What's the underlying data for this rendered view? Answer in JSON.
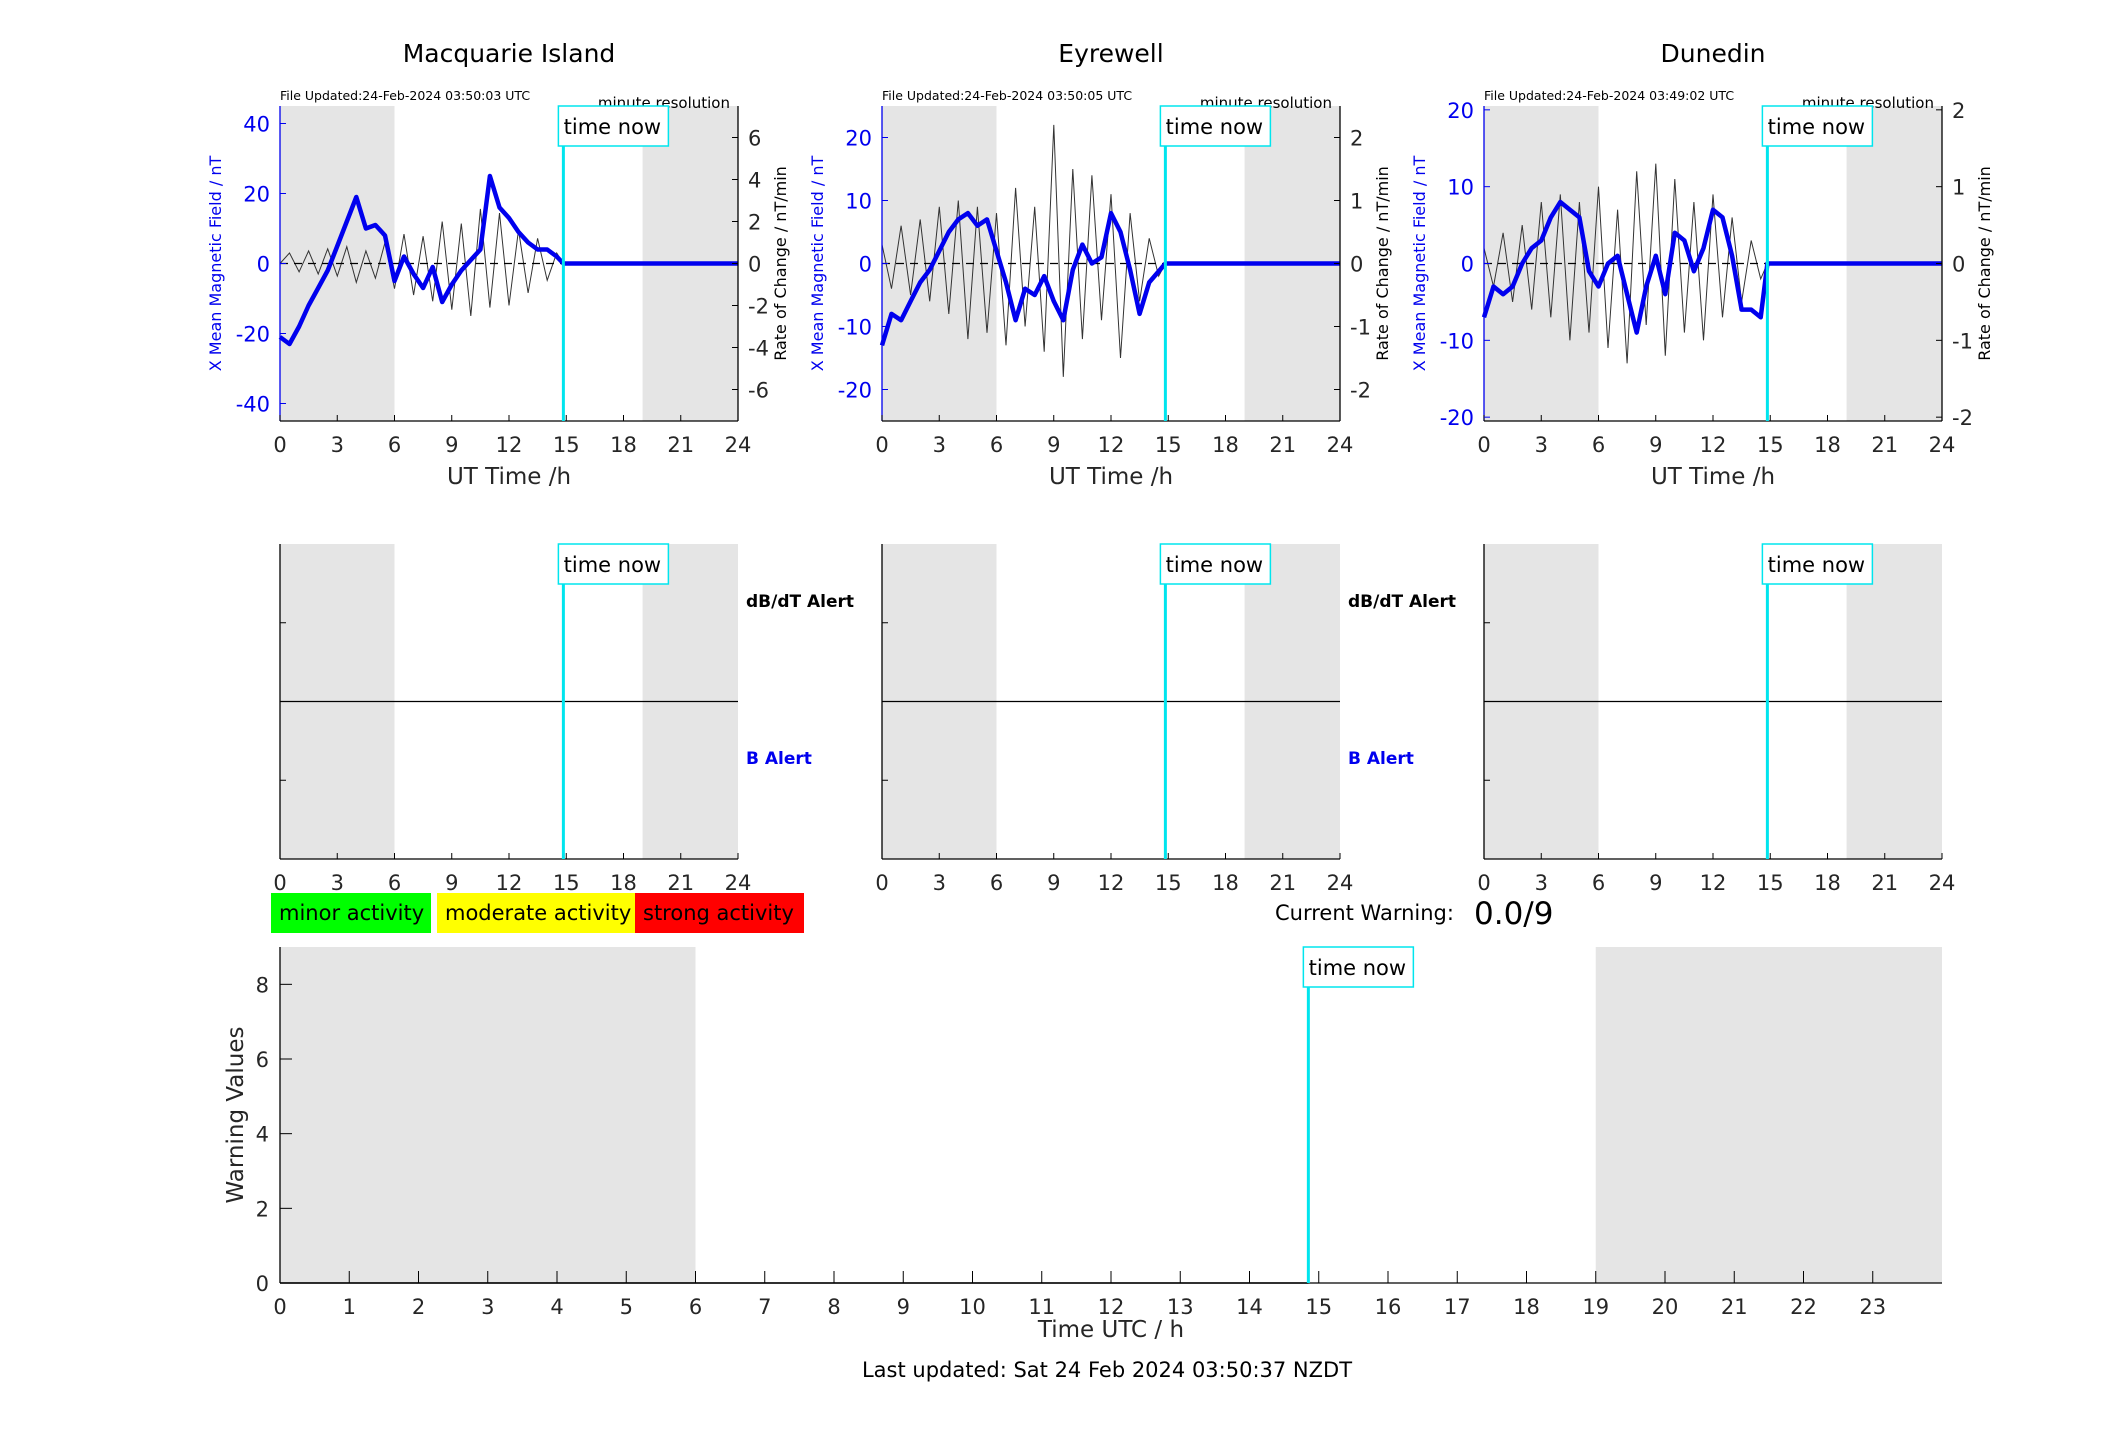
{
  "figure": {
    "last_updated": "Last updated: Sat 24 Feb 2024 03:50:37 NZDT",
    "time_now_label": "time now",
    "legend": {
      "minor": {
        "label": "minor activity",
        "color": "#00ff00"
      },
      "moderate": {
        "label": "moderate activity",
        "color": "#ffff00"
      },
      "strong": {
        "label": "strong activity",
        "color": "#ff0000"
      }
    },
    "current_warning": {
      "label": "Current Warning:",
      "value": "0.0/9"
    }
  },
  "colors": {
    "field_line": "#0000ee",
    "rate_line": "#333333",
    "time_now": "#00e5ee",
    "night_shade": "#e5e5e5"
  },
  "chart_data": [
    {
      "type": "line",
      "panel": "field",
      "title": "Macquarie Island",
      "file_updated": "File Updated:24-Feb-2024 03:50:03 UTC",
      "resolution": "minute resolution",
      "xlabel": "UT Time /h",
      "ylabel": "X Mean Magnetic Field / nT",
      "y2label": "Rate of Change / nT/min",
      "xlim": [
        0,
        24
      ],
      "ylim": [
        -45,
        45
      ],
      "y2lim": [
        -7.5,
        7.5
      ],
      "xticks": [
        0,
        3,
        6,
        9,
        12,
        15,
        18,
        21,
        24
      ],
      "yticks": [
        -40,
        -20,
        0,
        20,
        40
      ],
      "y2ticks": [
        -6,
        -4,
        -2,
        0,
        2,
        4,
        6
      ],
      "shaded": [
        [
          0,
          6
        ],
        [
          19,
          24
        ]
      ],
      "time_now": 14.85,
      "field_series": {
        "x": [
          0,
          0.5,
          1,
          1.5,
          2,
          2.5,
          3,
          3.5,
          4,
          4.5,
          5,
          5.5,
          6,
          6.5,
          7,
          7.5,
          8,
          8.5,
          9,
          9.5,
          10,
          10.5,
          11,
          11.5,
          12,
          12.5,
          13,
          13.5,
          14,
          14.5,
          14.85,
          24
        ],
        "y": [
          -21,
          -23,
          -18,
          -12,
          -7,
          -2,
          5,
          12,
          19,
          10,
          11,
          8,
          -5,
          2,
          -3,
          -7,
          -1,
          -11,
          -6,
          -2,
          1,
          4,
          25,
          16,
          13,
          9,
          6,
          4,
          4,
          2,
          0,
          0
        ]
      },
      "rate_series": {
        "x": [
          0,
          0.5,
          1,
          1.5,
          2,
          2.5,
          3,
          3.5,
          4,
          4.5,
          5,
          5.5,
          6,
          6.5,
          7,
          7.5,
          8,
          8.5,
          9,
          9.5,
          10,
          10.5,
          11,
          11.5,
          12,
          12.5,
          13,
          13.5,
          14,
          14.5,
          14.85
        ],
        "y": [
          0,
          0.5,
          -0.4,
          0.6,
          -0.5,
          0.7,
          -0.6,
          0.8,
          -0.9,
          0.6,
          -0.7,
          1,
          -1.2,
          1.4,
          -1.5,
          1.3,
          -1.8,
          2,
          -2.2,
          1.9,
          -2.5,
          2.6,
          -2.1,
          2.4,
          -2,
          1.6,
          -1.4,
          1.2,
          -0.8,
          0.5,
          0
        ]
      }
    },
    {
      "type": "line",
      "panel": "field",
      "title": "Eyrewell",
      "file_updated": "File Updated:24-Feb-2024 03:50:05 UTC",
      "resolution": "minute resolution",
      "xlabel": "UT Time /h",
      "ylabel": "X Mean Magnetic Field / nT",
      "y2label": "Rate of Change / nT/min",
      "xlim": [
        0,
        24
      ],
      "ylim": [
        -25,
        25
      ],
      "y2lim": [
        -2.5,
        2.5
      ],
      "xticks": [
        0,
        3,
        6,
        9,
        12,
        15,
        18,
        21,
        24
      ],
      "yticks": [
        -20,
        -10,
        0,
        10,
        20
      ],
      "y2ticks": [
        -2,
        -1,
        0,
        1,
        2
      ],
      "shaded": [
        [
          0,
          6
        ],
        [
          19,
          24
        ]
      ],
      "time_now": 14.85,
      "field_series": {
        "x": [
          0,
          0.5,
          1,
          1.5,
          2,
          2.5,
          3,
          3.5,
          4,
          4.5,
          5,
          5.5,
          6,
          6.5,
          7,
          7.5,
          8,
          8.5,
          9,
          9.5,
          10,
          10.5,
          11,
          11.5,
          12,
          12.5,
          13,
          13.5,
          14,
          14.85,
          24
        ],
        "y": [
          -13,
          -8,
          -9,
          -6,
          -3,
          -1,
          2,
          5,
          7,
          8,
          6,
          7,
          2,
          -3,
          -9,
          -4,
          -5,
          -2,
          -6,
          -9,
          -1,
          3,
          0,
          1,
          8,
          5,
          -1,
          -8,
          -3,
          0,
          0
        ]
      },
      "rate_series": {
        "x": [
          0,
          0.5,
          1,
          1.5,
          2,
          2.5,
          3,
          3.5,
          4,
          4.5,
          5,
          5.5,
          6,
          6.5,
          7,
          7.5,
          8,
          8.5,
          9,
          9.5,
          10,
          10.5,
          11,
          11.5,
          12,
          12.5,
          13,
          13.5,
          14,
          14.5,
          14.85
        ],
        "y": [
          0.3,
          -0.4,
          0.6,
          -0.5,
          0.7,
          -0.6,
          0.9,
          -0.8,
          1,
          -1.2,
          0.9,
          -1.1,
          0.8,
          -1.3,
          1.2,
          -1,
          0.9,
          -1.4,
          2.2,
          -1.8,
          1.5,
          -1.2,
          1.4,
          -0.9,
          1.1,
          -1.5,
          0.8,
          -0.6,
          0.4,
          -0.2,
          0
        ]
      }
    },
    {
      "type": "line",
      "panel": "field",
      "title": "Dunedin",
      "file_updated": "File Updated:24-Feb-2024 03:49:02 UTC",
      "resolution": "minute resolution",
      "xlabel": "UT Time /h",
      "ylabel": "X Mean Magnetic Field / nT",
      "y2label": "Rate of Change / nT/min",
      "xlim": [
        0,
        24
      ],
      "ylim": [
        -20.5,
        20.5
      ],
      "y2lim": [
        -2.05,
        2.05
      ],
      "xticks": [
        0,
        3,
        6,
        9,
        12,
        15,
        18,
        21,
        24
      ],
      "yticks": [
        -20,
        -10,
        0,
        10,
        20
      ],
      "y2ticks": [
        -2,
        -1,
        0,
        1,
        2
      ],
      "shaded": [
        [
          0,
          6
        ],
        [
          19,
          24
        ]
      ],
      "time_now": 14.85,
      "field_series": {
        "x": [
          0,
          0.5,
          1,
          1.5,
          2,
          2.5,
          3,
          3.5,
          4,
          4.5,
          5,
          5.5,
          6,
          6.5,
          7,
          7.5,
          8,
          8.5,
          9,
          9.5,
          10,
          10.5,
          11,
          11.5,
          12,
          12.5,
          13,
          13.5,
          14,
          14.5,
          14.85,
          24
        ],
        "y": [
          -7,
          -3,
          -4,
          -3,
          0,
          2,
          3,
          6,
          8,
          7,
          6,
          -1,
          -3,
          0,
          1,
          -4,
          -9,
          -3,
          1,
          -4,
          4,
          3,
          -1,
          2,
          7,
          6,
          1,
          -6,
          -6,
          -7,
          0,
          0
        ]
      },
      "rate_series": {
        "x": [
          0,
          0.5,
          1,
          1.5,
          2,
          2.5,
          3,
          3.5,
          4,
          4.5,
          5,
          5.5,
          6,
          6.5,
          7,
          7.5,
          8,
          8.5,
          9,
          9.5,
          10,
          10.5,
          11,
          11.5,
          12,
          12.5,
          13,
          13.5,
          14,
          14.5,
          14.85
        ],
        "y": [
          0.2,
          -0.3,
          0.4,
          -0.5,
          0.5,
          -0.6,
          0.8,
          -0.7,
          0.9,
          -1,
          0.8,
          -0.9,
          1,
          -1.1,
          0.7,
          -1.3,
          1.2,
          -0.8,
          1.3,
          -1.2,
          1.1,
          -0.9,
          0.8,
          -1,
          0.9,
          -0.7,
          0.6,
          -0.5,
          0.3,
          -0.2,
          0
        ]
      }
    },
    {
      "type": "line",
      "panel": "alert",
      "top_label": "dB/dT Alert",
      "bottom_label": "B Alert",
      "xlim": [
        0,
        24
      ],
      "xticks": [
        0,
        3,
        6,
        9,
        12,
        15,
        18,
        21,
        24
      ],
      "shaded": [
        [
          0,
          6
        ],
        [
          19,
          24
        ]
      ],
      "time_now": 14.85
    },
    {
      "type": "line",
      "panel": "alert",
      "top_label": "dB/dT Alert",
      "bottom_label": "B Alert",
      "xlim": [
        0,
        24
      ],
      "xticks": [
        0,
        3,
        6,
        9,
        12,
        15,
        18,
        21,
        24
      ],
      "shaded": [
        [
          0,
          6
        ],
        [
          19,
          24
        ]
      ],
      "time_now": 14.85
    },
    {
      "type": "line",
      "panel": "alert",
      "top_label": "",
      "bottom_label": "",
      "xlim": [
        0,
        24
      ],
      "xticks": [
        0,
        3,
        6,
        9,
        12,
        15,
        18,
        21,
        24
      ],
      "shaded": [
        [
          0,
          6
        ],
        [
          19,
          24
        ]
      ],
      "time_now": 14.85
    },
    {
      "type": "line",
      "panel": "warning",
      "xlabel": "Time UTC / h",
      "ylabel": "Warning Values",
      "xlim": [
        0,
        24
      ],
      "ylim": [
        0,
        9
      ],
      "xticks": [
        0,
        1,
        2,
        3,
        4,
        5,
        6,
        7,
        8,
        9,
        10,
        11,
        12,
        13,
        14,
        15,
        16,
        17,
        18,
        19,
        20,
        21,
        22,
        23
      ],
      "yticks": [
        0,
        2,
        4,
        6,
        8
      ],
      "shaded": [
        [
          0,
          6
        ],
        [
          19,
          24
        ]
      ],
      "time_now": 14.85,
      "series": [
        {
          "x": [
            0,
            14.85
          ],
          "y": [
            0,
            0
          ]
        }
      ]
    }
  ]
}
